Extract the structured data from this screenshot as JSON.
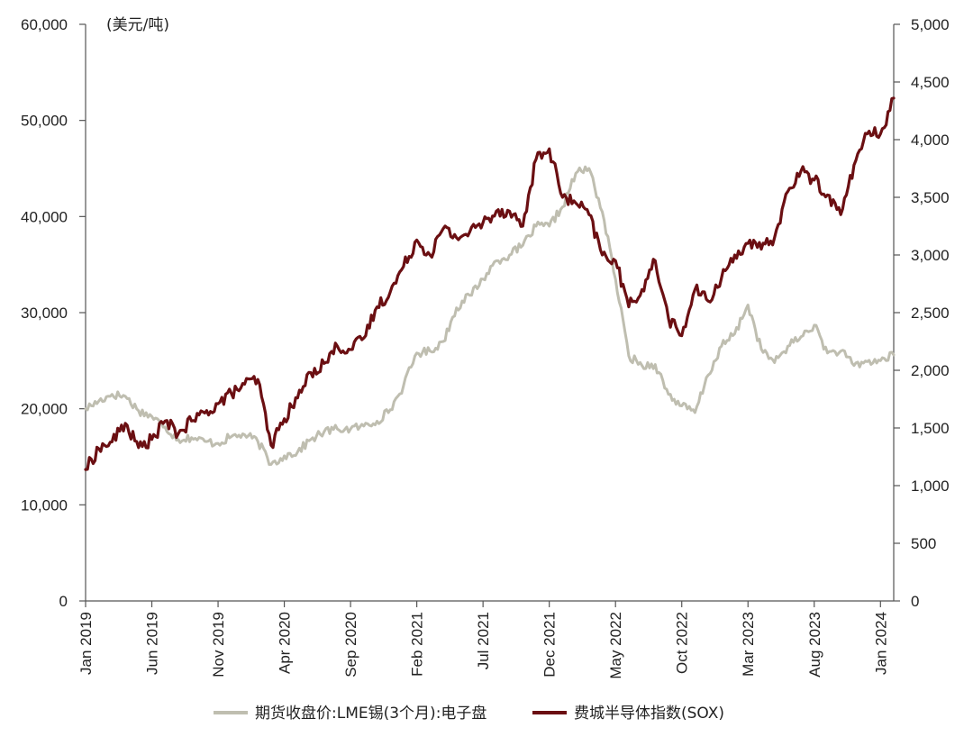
{
  "chart_data": {
    "type": "line",
    "unit_label": "(美元/吨)",
    "title": "",
    "x_tick_labels": [
      "Jan 2019",
      "Jun 2019",
      "Nov 2019",
      "Apr 2020",
      "Sep 2020",
      "Feb 2021",
      "Jul 2021",
      "Dec 2021",
      "May 2022",
      "Oct 2022",
      "Mar 2023",
      "Aug 2023",
      "Jan 2024"
    ],
    "x_range": [
      "2019-01",
      "2024-02"
    ],
    "y_left": {
      "ylim": [
        0,
        60000
      ],
      "ticks": [
        "0",
        "10,000",
        "20,000",
        "30,000",
        "40,000",
        "50,000",
        "60,000"
      ]
    },
    "y_right": {
      "ylim": [
        0,
        5000
      ],
      "ticks": [
        "0",
        "500",
        "1,000",
        "1,500",
        "2,000",
        "2,500",
        "3,000",
        "3,500",
        "4,000",
        "4,500",
        "5,000"
      ]
    },
    "grid": false,
    "legend_position": "bottom",
    "series": [
      {
        "name": "期货收盘价:LME锡(3个月):电子盘",
        "axis": "left",
        "color": "#bfbeb0",
        "points": [
          [
            "2019-01",
            20000
          ],
          [
            "2019-02",
            20800
          ],
          [
            "2019-03",
            21500
          ],
          [
            "2019-04",
            21300
          ],
          [
            "2019-05",
            19800
          ],
          [
            "2019-06",
            19200
          ],
          [
            "2019-07",
            18100
          ],
          [
            "2019-08",
            16800
          ],
          [
            "2019-09",
            17000
          ],
          [
            "2019-10",
            16600
          ],
          [
            "2019-11",
            16400
          ],
          [
            "2019-12",
            17100
          ],
          [
            "2020-01",
            17300
          ],
          [
            "2020-02",
            16600
          ],
          [
            "2020-03",
            14200
          ],
          [
            "2020-04",
            15100
          ],
          [
            "2020-05",
            15500
          ],
          [
            "2020-06",
            16800
          ],
          [
            "2020-07",
            17600
          ],
          [
            "2020-08",
            17900
          ],
          [
            "2020-09",
            17900
          ],
          [
            "2020-10",
            18200
          ],
          [
            "2020-11",
            18700
          ],
          [
            "2020-12",
            19900
          ],
          [
            "2021-01",
            22400
          ],
          [
            "2021-02",
            25800
          ],
          [
            "2021-03",
            26000
          ],
          [
            "2021-04",
            27000
          ],
          [
            "2021-05",
            30500
          ],
          [
            "2021-06",
            31800
          ],
          [
            "2021-07",
            33500
          ],
          [
            "2021-08",
            35400
          ],
          [
            "2021-09",
            36000
          ],
          [
            "2021-10",
            37000
          ],
          [
            "2021-11",
            39000
          ],
          [
            "2021-12",
            39000
          ],
          [
            "2022-01",
            41000
          ],
          [
            "2022-02",
            44500
          ],
          [
            "2022-03",
            45000
          ],
          [
            "2022-04",
            40500
          ],
          [
            "2022-05",
            33500
          ],
          [
            "2022-06",
            25500
          ],
          [
            "2022-07",
            24500
          ],
          [
            "2022-08",
            24600
          ],
          [
            "2022-09",
            21500
          ],
          [
            "2022-10",
            20300
          ],
          [
            "2022-11",
            19600
          ],
          [
            "2022-12",
            23500
          ],
          [
            "2023-01",
            26500
          ],
          [
            "2023-02",
            27800
          ],
          [
            "2023-03",
            30800
          ],
          [
            "2023-04",
            26200
          ],
          [
            "2023-05",
            24800
          ],
          [
            "2023-06",
            26500
          ],
          [
            "2023-07",
            27500
          ],
          [
            "2023-08",
            28700
          ],
          [
            "2023-09",
            25800
          ],
          [
            "2023-10",
            26000
          ],
          [
            "2023-11",
            24500
          ],
          [
            "2023-12",
            24900
          ],
          [
            "2024-01",
            25000
          ],
          [
            "2024-02",
            25600
          ]
        ]
      },
      {
        "name": "费城半导体指数(SOX)",
        "axis": "right",
        "color": "#6b0f12",
        "points": [
          [
            "2019-01",
            1140
          ],
          [
            "2019-02",
            1320
          ],
          [
            "2019-03",
            1380
          ],
          [
            "2019-04",
            1540
          ],
          [
            "2019-05",
            1330
          ],
          [
            "2019-06",
            1400
          ],
          [
            "2019-07",
            1560
          ],
          [
            "2019-08",
            1450
          ],
          [
            "2019-09",
            1560
          ],
          [
            "2019-10",
            1630
          ],
          [
            "2019-11",
            1710
          ],
          [
            "2019-12",
            1800
          ],
          [
            "2020-01",
            1880
          ],
          [
            "2020-02",
            1920
          ],
          [
            "2020-03",
            1350
          ],
          [
            "2020-04",
            1580
          ],
          [
            "2020-05",
            1760
          ],
          [
            "2020-06",
            1980
          ],
          [
            "2020-07",
            2060
          ],
          [
            "2020-08",
            2210
          ],
          [
            "2020-09",
            2180
          ],
          [
            "2020-10",
            2280
          ],
          [
            "2020-11",
            2550
          ],
          [
            "2020-12",
            2680
          ],
          [
            "2021-01",
            2900
          ],
          [
            "2021-02",
            3130
          ],
          [
            "2021-03",
            3000
          ],
          [
            "2021-04",
            3230
          ],
          [
            "2021-05",
            3150
          ],
          [
            "2021-06",
            3200
          ],
          [
            "2021-07",
            3280
          ],
          [
            "2021-08",
            3380
          ],
          [
            "2021-09",
            3380
          ],
          [
            "2021-10",
            3250
          ],
          [
            "2021-11",
            3830
          ],
          [
            "2021-12",
            3920
          ],
          [
            "2022-01",
            3500
          ],
          [
            "2022-02",
            3450
          ],
          [
            "2022-03",
            3350
          ],
          [
            "2022-04",
            3000
          ],
          [
            "2022-05",
            2950
          ],
          [
            "2022-06",
            2550
          ],
          [
            "2022-07",
            2700
          ],
          [
            "2022-08",
            2950
          ],
          [
            "2022-09",
            2450
          ],
          [
            "2022-10",
            2300
          ],
          [
            "2022-11",
            2700
          ],
          [
            "2022-12",
            2600
          ],
          [
            "2023-01",
            2800
          ],
          [
            "2023-02",
            3000
          ],
          [
            "2023-03",
            3100
          ],
          [
            "2023-04",
            3050
          ],
          [
            "2023-05",
            3150
          ],
          [
            "2023-06",
            3550
          ],
          [
            "2023-07",
            3730
          ],
          [
            "2023-08",
            3650
          ],
          [
            "2023-09",
            3520
          ],
          [
            "2023-10",
            3350
          ],
          [
            "2023-11",
            3780
          ],
          [
            "2023-12",
            4050
          ],
          [
            "2024-01",
            4050
          ],
          [
            "2024-02",
            4360
          ]
        ]
      }
    ]
  }
}
